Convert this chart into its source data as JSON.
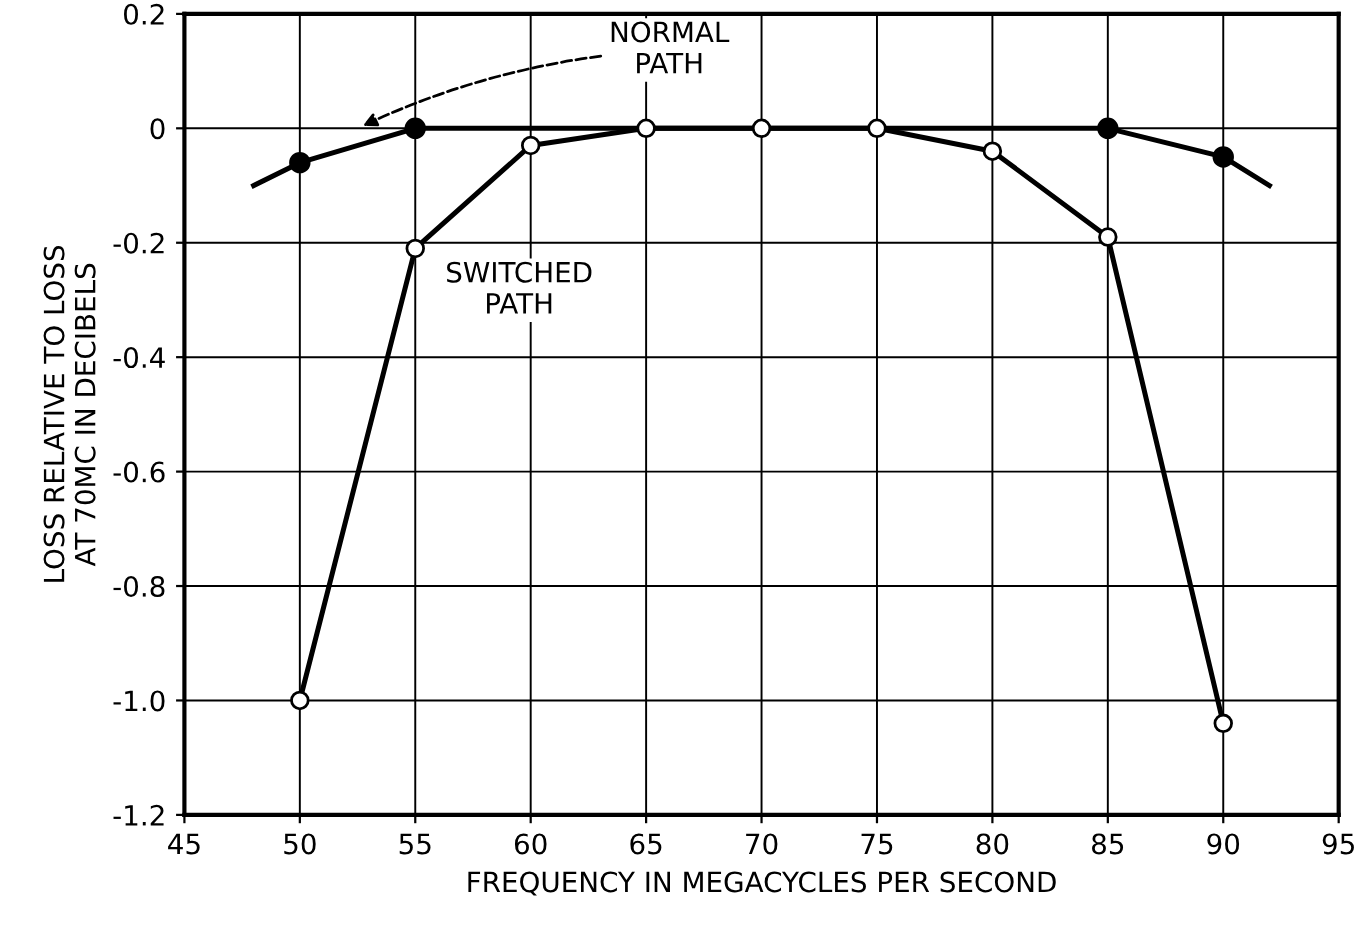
{
  "chart_data": {
    "type": "line",
    "xlabel": "FREQUENCY IN MEGACYCLES PER SECOND",
    "ylabel": "LOSS RELATIVE TO LOSS\nAT 70MC IN DECIBELS",
    "xlim": [
      45,
      95
    ],
    "xticks": [
      45,
      50,
      55,
      60,
      65,
      70,
      75,
      80,
      85,
      90,
      95
    ],
    "ylim": [
      -1.2,
      0.2
    ],
    "yticks": [
      0.2,
      0,
      -0.2,
      -0.4,
      -0.6,
      -0.8,
      {
        "value": -1,
        "label": "-1.0"
      },
      -1.2
    ],
    "grid": true,
    "series": [
      {
        "name": "NORMAL PATH",
        "color": "#000000",
        "marker": "none",
        "x": [
          48,
          50,
          55,
          60,
          65,
          70,
          75,
          80,
          85,
          90,
          92
        ],
        "values": [
          -0.1,
          -0.06,
          0,
          0,
          0,
          0,
          0,
          0,
          0,
          -0.05,
          -0.1
        ]
      },
      {
        "type": "scatter",
        "color": "#000000",
        "marker": "circle",
        "x": [
          50,
          55,
          85,
          90
        ],
        "values": [
          -0.06,
          0,
          0,
          -0.05
        ]
      },
      {
        "name": "SWITCHED PATH",
        "color": "#000000",
        "marker": "circle",
        "x": [
          50,
          55,
          60,
          65,
          70,
          75,
          80,
          85,
          90
        ],
        "values": [
          -1.0,
          -0.21,
          -0.03,
          0,
          0,
          0,
          -0.04,
          -0.19,
          -1.04
        ]
      }
    ]
  }
}
